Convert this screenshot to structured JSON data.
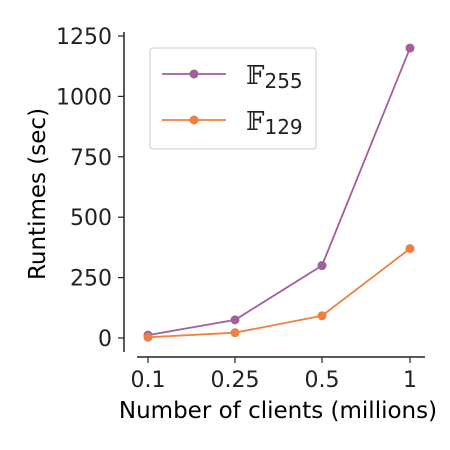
{
  "chart_data": {
    "type": "line",
    "categories": [
      "0.1",
      "0.25",
      "0.5",
      "1"
    ],
    "series": [
      {
        "name_symbol": "𝔽",
        "name_subscript": "255",
        "color": "#a0609a",
        "values": [
          12,
          75,
          300,
          1200
        ]
      },
      {
        "name_symbol": "𝔽",
        "name_subscript": "129",
        "color": "#f08040",
        "values": [
          3,
          22,
          92,
          370
        ]
      }
    ],
    "xlabel": "Number of clients (millions)",
    "ylabel": "Runtimes (sec)",
    "yticks": [
      "0",
      "250",
      "500",
      "750",
      "1000",
      "1250"
    ],
    "ylim": [
      -30,
      1270
    ],
    "grid": false,
    "legend_position": "top-left"
  }
}
